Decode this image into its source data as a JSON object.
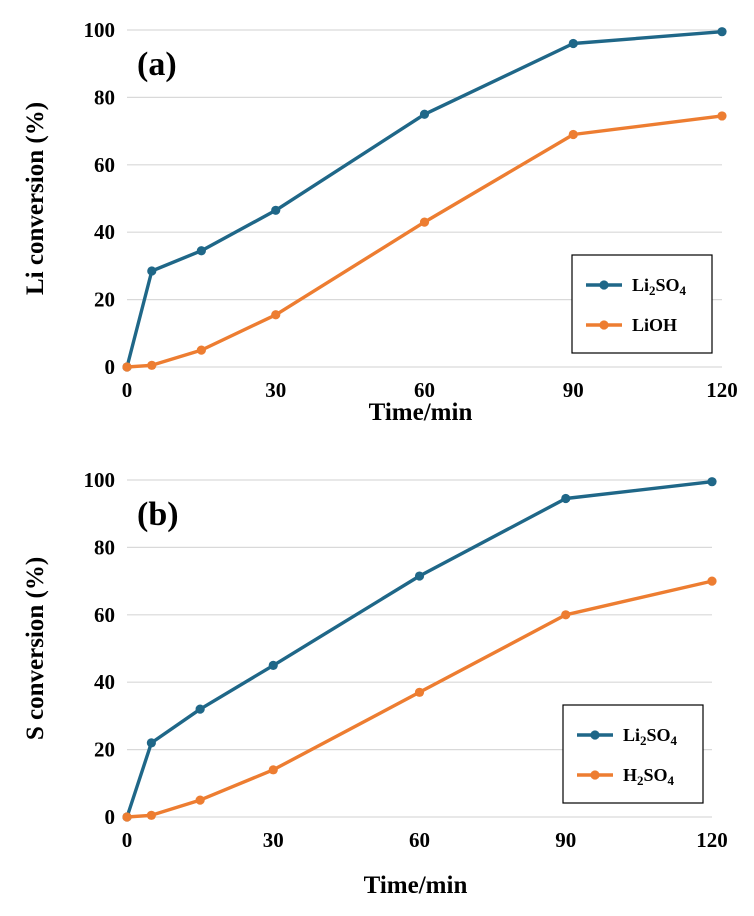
{
  "chart_data": [
    {
      "type": "line",
      "panel_label": "(a)",
      "xlabel": "Time/min",
      "ylabel": "Li conversion (%)",
      "xlim": [
        0,
        120
      ],
      "ylim": [
        0,
        100
      ],
      "xticks": [
        "0",
        "30",
        "60",
        "90",
        "120"
      ],
      "yticks": [
        "0",
        "20",
        "40",
        "60",
        "80",
        "100"
      ],
      "grid": "horizontal",
      "legend_position": "bottom-right",
      "x": [
        0,
        5,
        15,
        30,
        60,
        90,
        120
      ],
      "series": [
        {
          "name": "Li2SO4",
          "legend": {
            "base": "Li",
            "sub1": "2",
            "mid": "SO",
            "sub2": "4"
          },
          "color": "#1f6788",
          "values": [
            0,
            28.5,
            34.5,
            46.5,
            75,
            96,
            99.5
          ]
        },
        {
          "name": "LiOH",
          "legend": {
            "base": "LiOH",
            "sub1": "",
            "mid": "",
            "sub2": ""
          },
          "color": "#ed7d31",
          "values": [
            0,
            0.5,
            5,
            15.5,
            43,
            69,
            74.5
          ]
        }
      ]
    },
    {
      "type": "line",
      "panel_label": "(b)",
      "xlabel": "Time/min",
      "ylabel": "S conversion (%)",
      "xlim": [
        0,
        120
      ],
      "ylim": [
        0,
        100
      ],
      "xticks": [
        "0",
        "30",
        "60",
        "90",
        "120"
      ],
      "yticks": [
        "0",
        "20",
        "40",
        "60",
        "80",
        "100"
      ],
      "grid": "horizontal",
      "legend_position": "bottom-right",
      "x": [
        0,
        5,
        15,
        30,
        60,
        90,
        120
      ],
      "series": [
        {
          "name": "Li2SO4",
          "legend": {
            "base": "Li",
            "sub1": "2",
            "mid": "SO",
            "sub2": "4"
          },
          "color": "#1f6788",
          "values": [
            0,
            22,
            32,
            45,
            71.5,
            94.5,
            99.5
          ]
        },
        {
          "name": "H2SO4",
          "legend": {
            "base": "H",
            "sub1": "2",
            "mid": "SO",
            "sub2": "4"
          },
          "color": "#ed7d31",
          "values": [
            0,
            0.5,
            5,
            14,
            37,
            60,
            70
          ]
        }
      ]
    }
  ]
}
